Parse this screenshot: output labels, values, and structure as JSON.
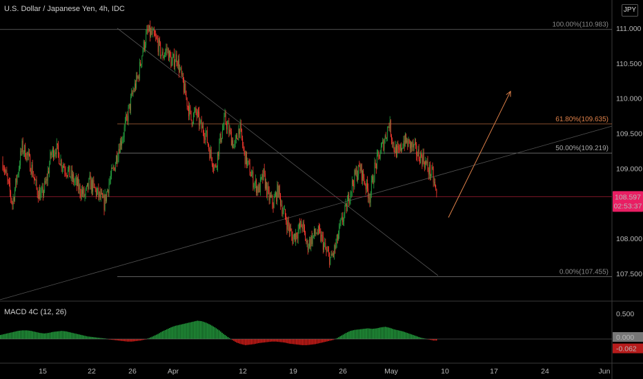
{
  "header": {
    "title": "U.S. Dollar / Japanese Yen, 4h, IDC",
    "currency_button": "JPY"
  },
  "price_badge": {
    "price": "108.597",
    "countdown": "02:53:37",
    "color": "#e91e63"
  },
  "fib_labels": {
    "level_100": "100.00%(110.983)",
    "level_618": "61.80%(109.635)",
    "level_500": "50.00%(109.219)",
    "level_000": "0.00%(107.455)"
  },
  "macd": {
    "title": "MACD 4C (12, 26)",
    "axis_labels": [
      "0.500",
      "0.000",
      "-0.062"
    ],
    "axis_values": [
      0.5,
      0.0
    ],
    "current_value": -0.062,
    "current_label": "-0.062",
    "zero_label": "0.000",
    "histogram": [
      0.08,
      0.1,
      0.12,
      0.14,
      0.16,
      0.17,
      0.17,
      0.16,
      0.14,
      0.12,
      0.11,
      0.12,
      0.14,
      0.15,
      0.16,
      0.15,
      0.13,
      0.11,
      0.09,
      0.07,
      0.05,
      0.04,
      0.03,
      0.02,
      0.01,
      -0.01,
      -0.02,
      -0.03,
      -0.04,
      -0.05,
      -0.05,
      -0.04,
      -0.03,
      -0.01,
      0.02,
      0.06,
      0.1,
      0.15,
      0.19,
      0.23,
      0.26,
      0.28,
      0.3,
      0.32,
      0.34,
      0.36,
      0.35,
      0.32,
      0.28,
      0.23,
      0.17,
      0.1,
      0.04,
      -0.02,
      -0.07,
      -0.1,
      -0.12,
      -0.11,
      -0.1,
      -0.08,
      -0.07,
      -0.06,
      -0.05,
      -0.05,
      -0.06,
      -0.07,
      -0.09,
      -0.1,
      -0.11,
      -0.12,
      -0.12,
      -0.11,
      -0.1,
      -0.08,
      -0.06,
      -0.04,
      -0.02,
      0.02,
      0.07,
      0.12,
      0.16,
      0.18,
      0.19,
      0.2,
      0.21,
      0.2,
      0.21,
      0.23,
      0.24,
      0.22,
      0.19,
      0.17,
      0.15,
      0.12,
      0.09,
      0.06,
      0.03,
      0.01,
      -0.01,
      -0.03
    ]
  },
  "price_axis": {
    "labels": [
      "111.000",
      "110.500",
      "110.000",
      "109.500",
      "109.000",
      "108.500",
      "108.000",
      "107.500"
    ],
    "values": [
      111.0,
      110.5,
      110.0,
      109.5,
      109.0,
      108.5,
      108.0,
      107.5
    ]
  },
  "time_axis": {
    "labels": [
      "15",
      "22",
      "26",
      "Apr",
      "12",
      "19",
      "26",
      "May",
      "10",
      "17",
      "24",
      "Jun"
    ]
  },
  "chart_data": {
    "type": "candlestick",
    "title": "U.S. Dollar / Japanese Yen, 4h, IDC",
    "ylim": [
      107.2,
      111.3
    ],
    "current_price": 108.597,
    "fib_levels": [
      {
        "label": "100.00%",
        "value": 110.983
      },
      {
        "label": "61.80%",
        "value": 109.635
      },
      {
        "label": "50.00%",
        "value": 109.219
      },
      {
        "label": "0.00%",
        "value": 107.455
      }
    ],
    "price_path": [
      109.1,
      108.8,
      108.5,
      108.9,
      109.3,
      109.2,
      109.0,
      108.7,
      108.6,
      108.8,
      109.2,
      109.3,
      109.1,
      109.0,
      108.9,
      108.8,
      108.7,
      108.6,
      108.8,
      108.7,
      108.6,
      108.5,
      108.8,
      109.0,
      109.3,
      109.5,
      109.8,
      110.1,
      110.3,
      110.7,
      110.95,
      110.9,
      110.8,
      110.6,
      110.7,
      110.5,
      110.6,
      110.3,
      110.0,
      109.7,
      109.8,
      109.6,
      109.5,
      109.2,
      109.0,
      109.4,
      109.7,
      109.5,
      109.3,
      109.6,
      109.2,
      109.0,
      108.8,
      108.7,
      108.9,
      108.6,
      108.5,
      108.7,
      108.4,
      108.2,
      108.0,
      108.1,
      108.2,
      107.9,
      108.0,
      108.1,
      108.0,
      107.8,
      107.7,
      107.9,
      108.2,
      108.4,
      108.7,
      108.9,
      109.0,
      108.8,
      108.6,
      109.0,
      109.2,
      109.4,
      109.65,
      109.3,
      109.2,
      109.4,
      109.35,
      109.3,
      109.2,
      109.15,
      109.0,
      108.9,
      108.55
    ],
    "projection_arrow": {
      "from": [
        108.3
      ],
      "to": [
        110.1
      ]
    }
  },
  "colors": {
    "bull": "#26a641",
    "bear": "#ff3b30",
    "fib_orange": "#e0824a",
    "grid": "#1a1a1a"
  }
}
